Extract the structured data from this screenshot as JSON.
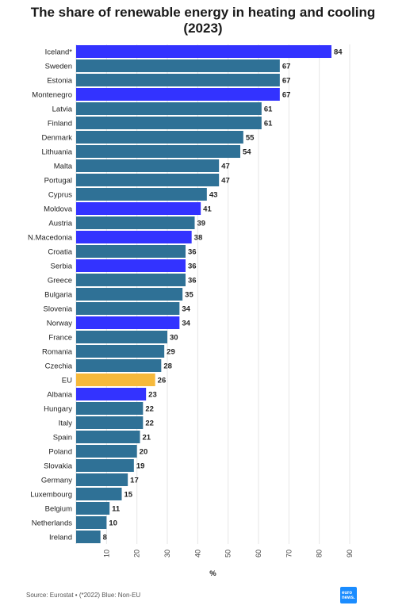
{
  "title_line1": "The share of renewable energy in heating and cooling",
  "title_line2": "(2023)",
  "footer": "Source: Eurostat • (*2022) Blue: Non-EU",
  "logo": {
    "line1": "euro",
    "line2": "news."
  },
  "colors": {
    "eu_member": "#2f7196",
    "non_eu": "#3333ff",
    "eu_average": "#f6b93b"
  },
  "chart_data": {
    "type": "bar",
    "orientation": "horizontal",
    "xlabel": "%",
    "xlim": [
      0,
      90
    ],
    "xticks": [
      10,
      20,
      30,
      40,
      50,
      60,
      70,
      80,
      90
    ],
    "grid": true,
    "categories": [
      "Iceland*",
      "Sweden",
      "Estonia",
      "Montenegro",
      "Latvia",
      "Finland",
      "Denmark",
      "Lithuania",
      "Malta",
      "Portugal",
      "Cyprus",
      "Moldova",
      "Austria",
      "N.Macedonia",
      "Croatia",
      "Serbia",
      "Greece",
      "Bulgaria",
      "Slovenia",
      "Norway",
      "France",
      "Romania",
      "Czechia",
      "EU",
      "Albania",
      "Hungary",
      "Italy",
      "Spain",
      "Poland",
      "Slovakia",
      "Germany",
      "Luxembourg",
      "Belgium",
      "Netherlands",
      "Ireland"
    ],
    "values": [
      84,
      67,
      67,
      67,
      61,
      61,
      55,
      54,
      47,
      47,
      43,
      41,
      39,
      38,
      36,
      36,
      36,
      35,
      34,
      34,
      30,
      29,
      28,
      26,
      23,
      22,
      22,
      21,
      20,
      19,
      17,
      15,
      11,
      10,
      8
    ],
    "groups": [
      "non_eu",
      "eu_member",
      "eu_member",
      "non_eu",
      "eu_member",
      "eu_member",
      "eu_member",
      "eu_member",
      "eu_member",
      "eu_member",
      "eu_member",
      "non_eu",
      "eu_member",
      "non_eu",
      "eu_member",
      "non_eu",
      "eu_member",
      "eu_member",
      "eu_member",
      "non_eu",
      "eu_member",
      "eu_member",
      "eu_member",
      "eu_average",
      "non_eu",
      "eu_member",
      "eu_member",
      "eu_member",
      "eu_member",
      "eu_member",
      "eu_member",
      "eu_member",
      "eu_member",
      "eu_member",
      "eu_member"
    ]
  }
}
